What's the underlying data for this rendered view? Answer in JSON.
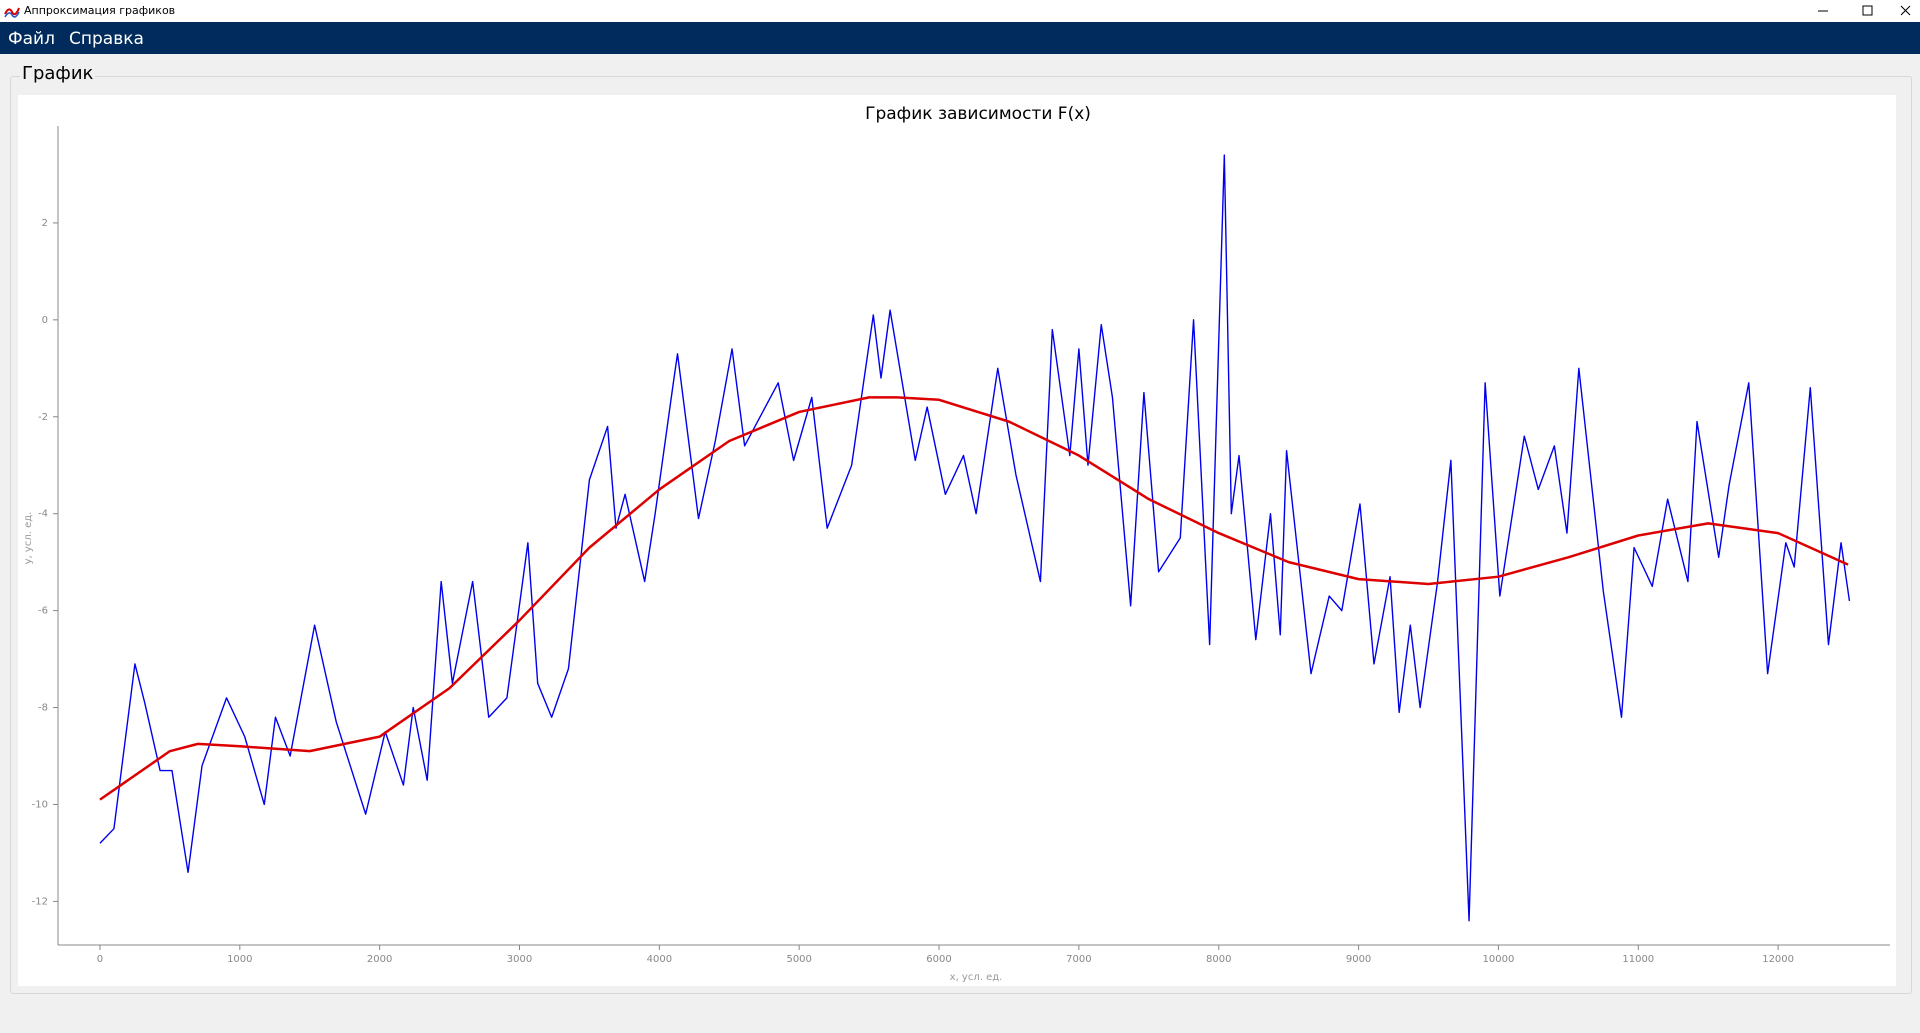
{
  "window": {
    "title": "Аппроксимация графиков"
  },
  "menu": [
    "Файл",
    "Справка"
  ],
  "group_title": "График",
  "chart_data": {
    "type": "line",
    "title": "График зависимости F(x)",
    "x_label": "x, усл. ед.",
    "y_label": "y, усл. ед.",
    "xlim": [
      -300,
      12800
    ],
    "ylim": [
      -12.9,
      4
    ],
    "xticks": [
      0,
      1000,
      2000,
      3000,
      4000,
      5000,
      6000,
      7000,
      8000,
      9000,
      10000,
      11000,
      12000
    ],
    "yticks": [
      -12,
      -10,
      -8,
      -6,
      -4,
      -2,
      0,
      2
    ],
    "grid": false,
    "series": [
      {
        "color": "#0000ee",
        "x": [
          0,
          100,
          250,
          320,
          430,
          515,
          630,
          730,
          905,
          1035,
          1175,
          1255,
          1360,
          1535,
          1690,
          1900,
          2040,
          2170,
          2240,
          2340,
          2440,
          2520,
          2665,
          2780,
          2910,
          3060,
          3130,
          3230,
          3350,
          3500,
          3630,
          3690,
          3755,
          3895,
          3970,
          4100,
          4130,
          4280,
          4400,
          4520,
          4610,
          4850,
          4960,
          5090,
          5200,
          5375,
          5530,
          5585,
          5650,
          5830,
          5915,
          6045,
          6175,
          6265,
          6420,
          6550,
          6725,
          6810,
          6935,
          7000,
          7065,
          7160,
          7240,
          7370,
          7465,
          7570,
          7725,
          7820,
          7935,
          8040,
          8090,
          8145,
          8265,
          8370,
          8440,
          8485,
          8660,
          8790,
          8880,
          9010,
          9110,
          9225,
          9290,
          9370,
          9440,
          9565,
          9660,
          9790,
          9905,
          10010,
          10185,
          10285,
          10400,
          10490,
          10575,
          10750,
          10880,
          10970,
          11100,
          11210,
          11355,
          11420,
          11575,
          11650,
          11790,
          11925,
          12055,
          12115,
          12230,
          12360,
          12450,
          12510
        ],
        "values": [
          -10.8,
          -10.5,
          -7.1,
          -7.9,
          -9.3,
          -9.3,
          -11.4,
          -9.2,
          -7.8,
          -8.6,
          -10,
          -8.2,
          -9,
          -6.3,
          -8.3,
          -10.2,
          -8.5,
          -9.6,
          -8,
          -9.5,
          -5.4,
          -7.5,
          -5.4,
          -8.2,
          -7.8,
          -4.6,
          -7.5,
          -8.2,
          -7.2,
          -3.3,
          -2.2,
          -4.3,
          -3.6,
          -5.4,
          -4,
          -1.3,
          -0.7,
          -4.1,
          -2.5,
          -0.6,
          -2.6,
          -1.3,
          -2.9,
          -1.6,
          -4.3,
          -3,
          0.1,
          -1.2,
          0.2,
          -2.9,
          -1.8,
          -3.6,
          -2.8,
          -4,
          -1,
          -3.2,
          -5.4,
          -0.2,
          -2.8,
          -0.6,
          -3,
          -0.1,
          -1.6,
          -5.9,
          -1.5,
          -5.2,
          -4.5,
          0,
          -6.7,
          3.4,
          -4,
          -2.8,
          -6.6,
          -4,
          -6.5,
          -2.7,
          -7.3,
          -5.7,
          -6,
          -3.8,
          -7.1,
          -5.3,
          -8.1,
          -6.3,
          -8,
          -5.4,
          -2.9,
          -12.4,
          -1.3,
          -5.7,
          -2.4,
          -3.5,
          -2.6,
          -4.4,
          -1,
          -5.6,
          -8.2,
          -4.7,
          -5.5,
          -3.7,
          -5.4,
          -2.1,
          -4.9,
          -3.4,
          -1.3,
          -7.3,
          -4.6,
          -5.1,
          -1.4,
          -6.7,
          -4.6,
          -5.8
        ]
      },
      {
        "color": "#dd0000",
        "x": [
          0,
          500,
          700,
          1000,
          1500,
          2000,
          2500,
          3000,
          3500,
          4000,
          4500,
          5000,
          5500,
          5700,
          6000,
          6500,
          7000,
          7500,
          8000,
          8500,
          9000,
          9500,
          10000,
          10500,
          11000,
          11500,
          12000,
          12500
        ],
        "values": [
          -9.9,
          -8.9,
          -8.75,
          -8.8,
          -8.9,
          -8.6,
          -7.6,
          -6.2,
          -4.7,
          -3.5,
          -2.5,
          -1.9,
          -1.6,
          -1.6,
          -1.65,
          -2.1,
          -2.8,
          -3.7,
          -4.4,
          -5,
          -5.35,
          -5.45,
          -5.3,
          -4.9,
          -4.45,
          -4.2,
          -4.4,
          -5.05
        ]
      }
    ]
  }
}
